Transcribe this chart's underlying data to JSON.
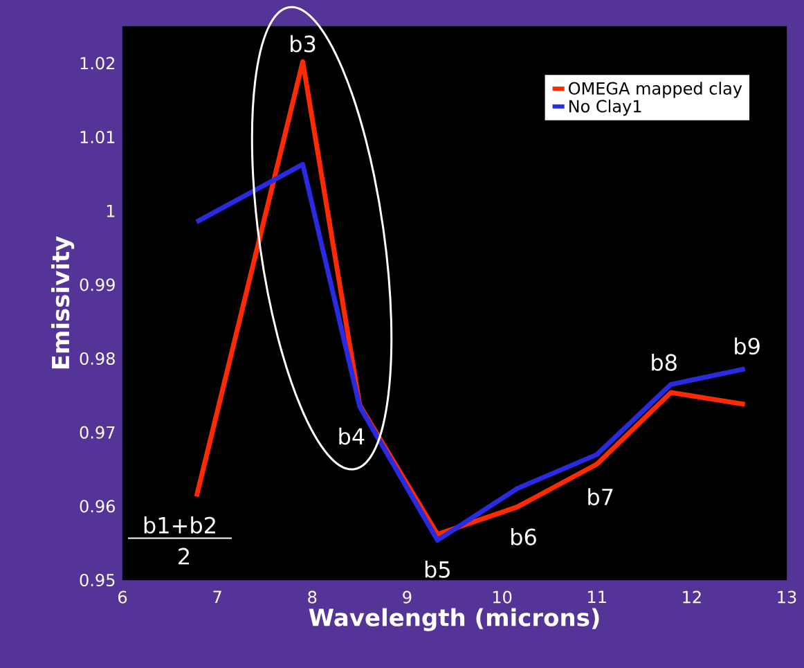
{
  "chart_data": {
    "type": "line",
    "xlabel": "Wavelength (microns)",
    "ylabel": "Emissivity",
    "x": [
      6.78,
      7.9,
      8.5,
      9.32,
      10.16,
      11.0,
      11.78,
      12.56
    ],
    "series": [
      {
        "name": "OMEGA mapped clay",
        "color": "#ff2a00",
        "values": [
          0.9613,
          1.0202,
          0.9737,
          0.9562,
          0.9599,
          0.9657,
          0.9754,
          0.9738
        ]
      },
      {
        "name": "No Clay1",
        "color": "#2a2ae0",
        "values": [
          0.9985,
          1.0063,
          0.9735,
          0.9554,
          0.9624,
          0.967,
          0.9765,
          0.9786
        ]
      }
    ],
    "xlim": [
      6,
      13
    ],
    "ylim": [
      0.95,
      1.025
    ],
    "xticks": [
      6,
      7,
      8,
      9,
      10,
      11,
      12,
      13
    ],
    "yticks": [
      0.95,
      0.96,
      0.97,
      0.98,
      0.99,
      1,
      1.01,
      1.02
    ],
    "annotations": [
      {
        "text": "b1+b2",
        "x": 6.78,
        "y": 0.9613
      },
      {
        "text": "2",
        "x": 6.78,
        "y": 0.9613
      },
      {
        "text": "b3",
        "x": 7.9,
        "y": 1.0202
      },
      {
        "text": "b4",
        "x": 8.5,
        "y": 0.9737
      },
      {
        "text": "b5",
        "x": 9.32,
        "y": 0.9554
      },
      {
        "text": "b6",
        "x": 10.16,
        "y": 0.9599
      },
      {
        "text": "b7",
        "x": 11.0,
        "y": 0.9657
      },
      {
        "text": "b8",
        "x": 11.78,
        "y": 0.9765
      },
      {
        "text": "b9",
        "x": 12.56,
        "y": 0.9786
      }
    ],
    "legend": "top right",
    "grid": false,
    "marker": "none",
    "line_style": "solid"
  }
}
